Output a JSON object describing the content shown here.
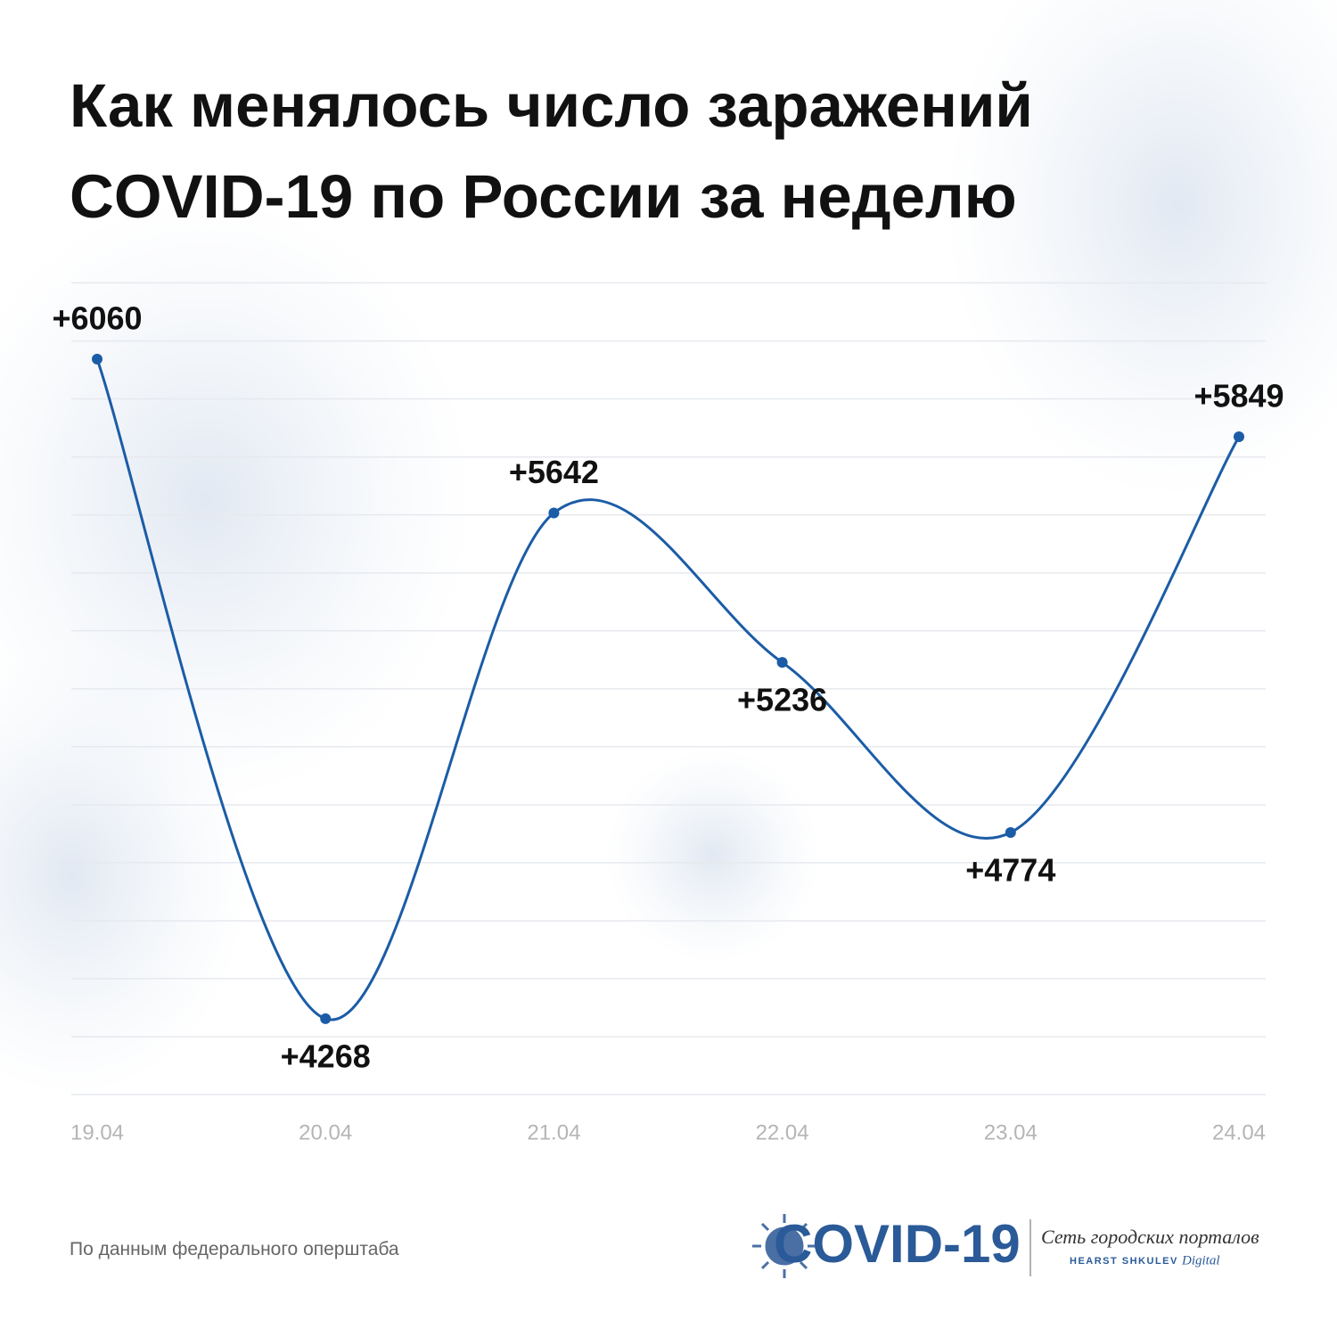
{
  "chart_data": {
    "type": "line",
    "title": "Как менялось число заражений COVID-19 по России за неделю",
    "categories": [
      "19.04",
      "20.04",
      "21.04",
      "22.04",
      "23.04",
      "24.04"
    ],
    "values": [
      6060,
      4268,
      5642,
      5236,
      4774,
      5849
    ],
    "value_labels": [
      "+6060",
      "+4268",
      "+5642",
      "+5236",
      "+4774",
      "+5849"
    ],
    "color": "#1b5ca6",
    "ylim": [
      4062,
      6268
    ],
    "yticks": [
      4062,
      4219,
      4377,
      4534,
      4692,
      4849,
      5007,
      5164,
      5322,
      5479,
      5637,
      5794,
      5952,
      6109,
      6267
    ],
    "grid": true
  },
  "footer": {
    "source": "По данным федерального оперштаба",
    "logo": "COVID-19",
    "network": "Сеть городских порталов",
    "brand": "HEARST SHKULEV",
    "brand_suffix": "Digital"
  }
}
